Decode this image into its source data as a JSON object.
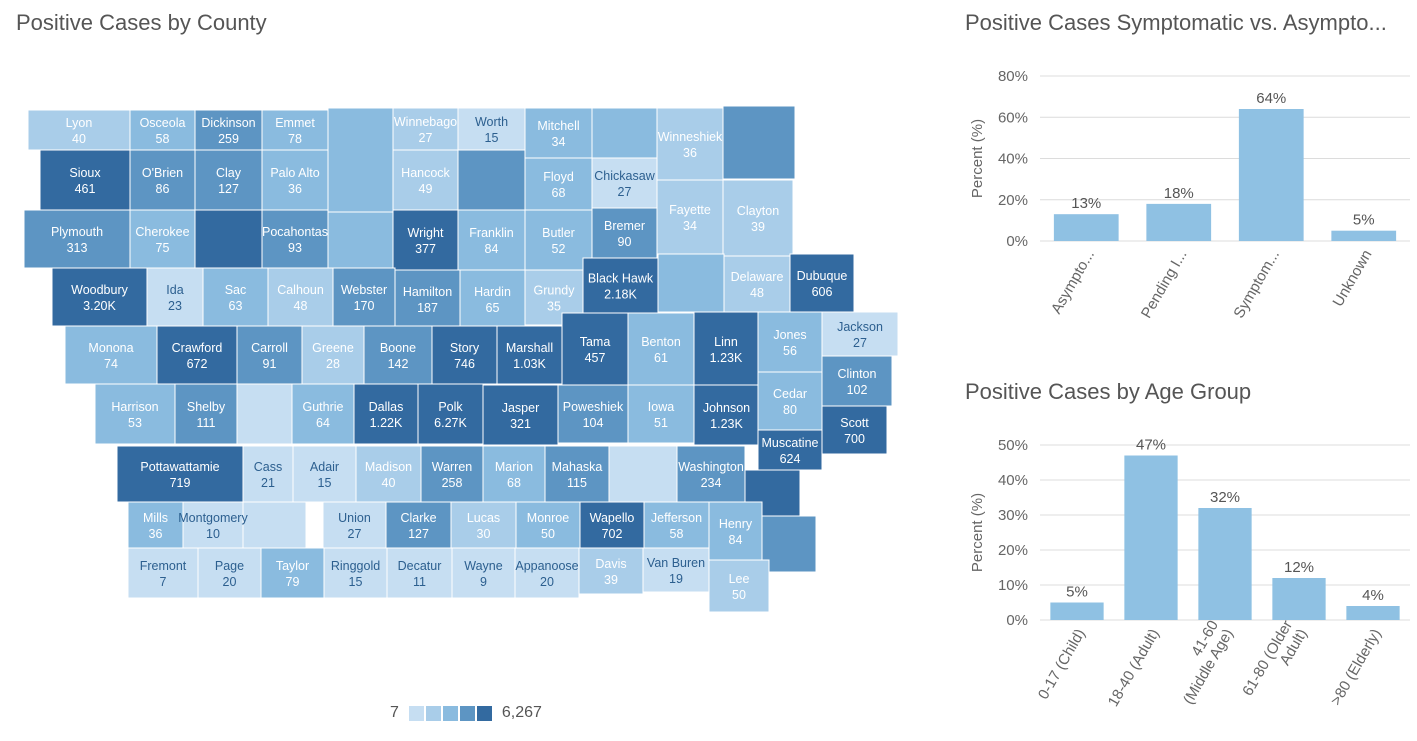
{
  "titles": {
    "map": "Positive Cases by County",
    "symptomatic": "Positive Cases Symptomatic vs. Asympto...",
    "age": "Positive Cases by Age Group"
  },
  "legend": {
    "min": "7",
    "max": "6,267",
    "colors": [
      "#c6def2",
      "#a9cde9",
      "#8abbdf",
      "#5d95c3",
      "#336aa0"
    ]
  },
  "map_data": {
    "counties": [
      {
        "name": "Lyon",
        "label": "40"
      },
      {
        "name": "Osceola",
        "label": "58"
      },
      {
        "name": "Dickinson",
        "label": "259"
      },
      {
        "name": "Emmet",
        "label": "78"
      },
      {
        "name": "Winnebago",
        "label": "27"
      },
      {
        "name": "Worth",
        "label": "15"
      },
      {
        "name": "Mitchell",
        "label": "34"
      },
      {
        "name": "Winneshiek",
        "label": "36"
      },
      {
        "name": "Sioux",
        "label": "461"
      },
      {
        "name": "O'Brien",
        "label": "86"
      },
      {
        "name": "Clay",
        "label": "127"
      },
      {
        "name": "Palo Alto",
        "label": "36"
      },
      {
        "name": "Hancock",
        "label": "49"
      },
      {
        "name": "Floyd",
        "label": "68"
      },
      {
        "name": "Chickasaw",
        "label": "27"
      },
      {
        "name": "Plymouth",
        "label": "313"
      },
      {
        "name": "Cherokee",
        "label": "75"
      },
      {
        "name": "Pocahontas",
        "label": "93"
      },
      {
        "name": "Wright",
        "label": "377"
      },
      {
        "name": "Franklin",
        "label": "84"
      },
      {
        "name": "Butler",
        "label": "52"
      },
      {
        "name": "Bremer",
        "label": "90"
      },
      {
        "name": "Fayette",
        "label": "34"
      },
      {
        "name": "Clayton",
        "label": "39"
      },
      {
        "name": "Woodbury",
        "label": "3.20K"
      },
      {
        "name": "Ida",
        "label": "23"
      },
      {
        "name": "Sac",
        "label": "63"
      },
      {
        "name": "Calhoun",
        "label": "48"
      },
      {
        "name": "Webster",
        "label": "170"
      },
      {
        "name": "Hamilton",
        "label": "187"
      },
      {
        "name": "Hardin",
        "label": "65"
      },
      {
        "name": "Grundy",
        "label": "35"
      },
      {
        "name": "Black Hawk",
        "label": "2.18K"
      },
      {
        "name": "Delaware",
        "label": "48"
      },
      {
        "name": "Dubuque",
        "label": "606"
      },
      {
        "name": "Monona",
        "label": "74"
      },
      {
        "name": "Crawford",
        "label": "672"
      },
      {
        "name": "Carroll",
        "label": "91"
      },
      {
        "name": "Greene",
        "label": "28"
      },
      {
        "name": "Boone",
        "label": "142"
      },
      {
        "name": "Story",
        "label": "746"
      },
      {
        "name": "Marshall",
        "label": "1.03K"
      },
      {
        "name": "Tama",
        "label": "457"
      },
      {
        "name": "Benton",
        "label": "61"
      },
      {
        "name": "Linn",
        "label": "1.23K"
      },
      {
        "name": "Jones",
        "label": "56"
      },
      {
        "name": "Jackson",
        "label": "27"
      },
      {
        "name": "Clinton",
        "label": "102"
      },
      {
        "name": "Harrison",
        "label": "53"
      },
      {
        "name": "Shelby",
        "label": "111"
      },
      {
        "name": "Guthrie",
        "label": "64"
      },
      {
        "name": "Dallas",
        "label": "1.22K"
      },
      {
        "name": "Polk",
        "label": "6.27K"
      },
      {
        "name": "Jasper",
        "label": "321"
      },
      {
        "name": "Poweshiek",
        "label": "104"
      },
      {
        "name": "Iowa",
        "label": "51"
      },
      {
        "name": "Johnson",
        "label": "1.23K"
      },
      {
        "name": "Cedar",
        "label": "80"
      },
      {
        "name": "Scott",
        "label": "700"
      },
      {
        "name": "Muscatine",
        "label": "624"
      },
      {
        "name": "Pottawattamie",
        "label": "719"
      },
      {
        "name": "Cass",
        "label": "21"
      },
      {
        "name": "Adair",
        "label": "15"
      },
      {
        "name": "Madison",
        "label": "40"
      },
      {
        "name": "Warren",
        "label": "258"
      },
      {
        "name": "Marion",
        "label": "68"
      },
      {
        "name": "Mahaska",
        "label": "115"
      },
      {
        "name": "Washington",
        "label": "234"
      },
      {
        "name": "Mills",
        "label": "36"
      },
      {
        "name": "Montgomery",
        "label": "10"
      },
      {
        "name": "Union",
        "label": "27"
      },
      {
        "name": "Clarke",
        "label": "127"
      },
      {
        "name": "Lucas",
        "label": "30"
      },
      {
        "name": "Monroe",
        "label": "50"
      },
      {
        "name": "Wapello",
        "label": "702"
      },
      {
        "name": "Jefferson",
        "label": "58"
      },
      {
        "name": "Henry",
        "label": "84"
      },
      {
        "name": "Fremont",
        "label": "7"
      },
      {
        "name": "Page",
        "label": "20"
      },
      {
        "name": "Taylor",
        "label": "79"
      },
      {
        "name": "Ringgold",
        "label": "15"
      },
      {
        "name": "Decatur",
        "label": "11"
      },
      {
        "name": "Wayne",
        "label": "9"
      },
      {
        "name": "Appanoose",
        "label": "20"
      },
      {
        "name": "Davis",
        "label": "39"
      },
      {
        "name": "Van Buren",
        "label": "19"
      },
      {
        "name": "Lee",
        "label": "50"
      }
    ]
  },
  "chart_data": [
    {
      "type": "bar",
      "title": "Positive Cases Symptomatic vs. Asympto...",
      "ylabel": "Percent (%)",
      "categories": [
        "Asympto...",
        "Pending I...",
        "Symptom...",
        "Unknown"
      ],
      "values": [
        13,
        18,
        64,
        5
      ],
      "value_labels": [
        "13%",
        "18%",
        "64%",
        "5%"
      ],
      "yticks": [
        "0%",
        "20%",
        "40%",
        "60%",
        "80%"
      ],
      "ylim": [
        0,
        80
      ],
      "grid": true,
      "color": "#8fc1e3"
    },
    {
      "type": "bar",
      "title": "Positive Cases by Age Group",
      "ylabel": "Percent (%)",
      "categories": [
        "0-17 (Child)",
        "18-40 (Adult)",
        "41-60 (Middle Age)",
        "61-80 (Older Adult)",
        ">80 (Elderly)"
      ],
      "category_lines": [
        [
          "0-17 (Child)"
        ],
        [
          "18-40 (Adult)"
        ],
        [
          "41-60",
          "(Middle Age)"
        ],
        [
          "61-80 (Older",
          "Adult)"
        ],
        [
          ">80 (Elderly)"
        ]
      ],
      "values": [
        5,
        47,
        32,
        12,
        4
      ],
      "value_labels": [
        "5%",
        "47%",
        "32%",
        "12%",
        "4%"
      ],
      "yticks": [
        "0%",
        "10%",
        "20%",
        "30%",
        "40%",
        "50%"
      ],
      "ylim": [
        0,
        50
      ],
      "grid": true,
      "color": "#8fc1e3"
    }
  ]
}
